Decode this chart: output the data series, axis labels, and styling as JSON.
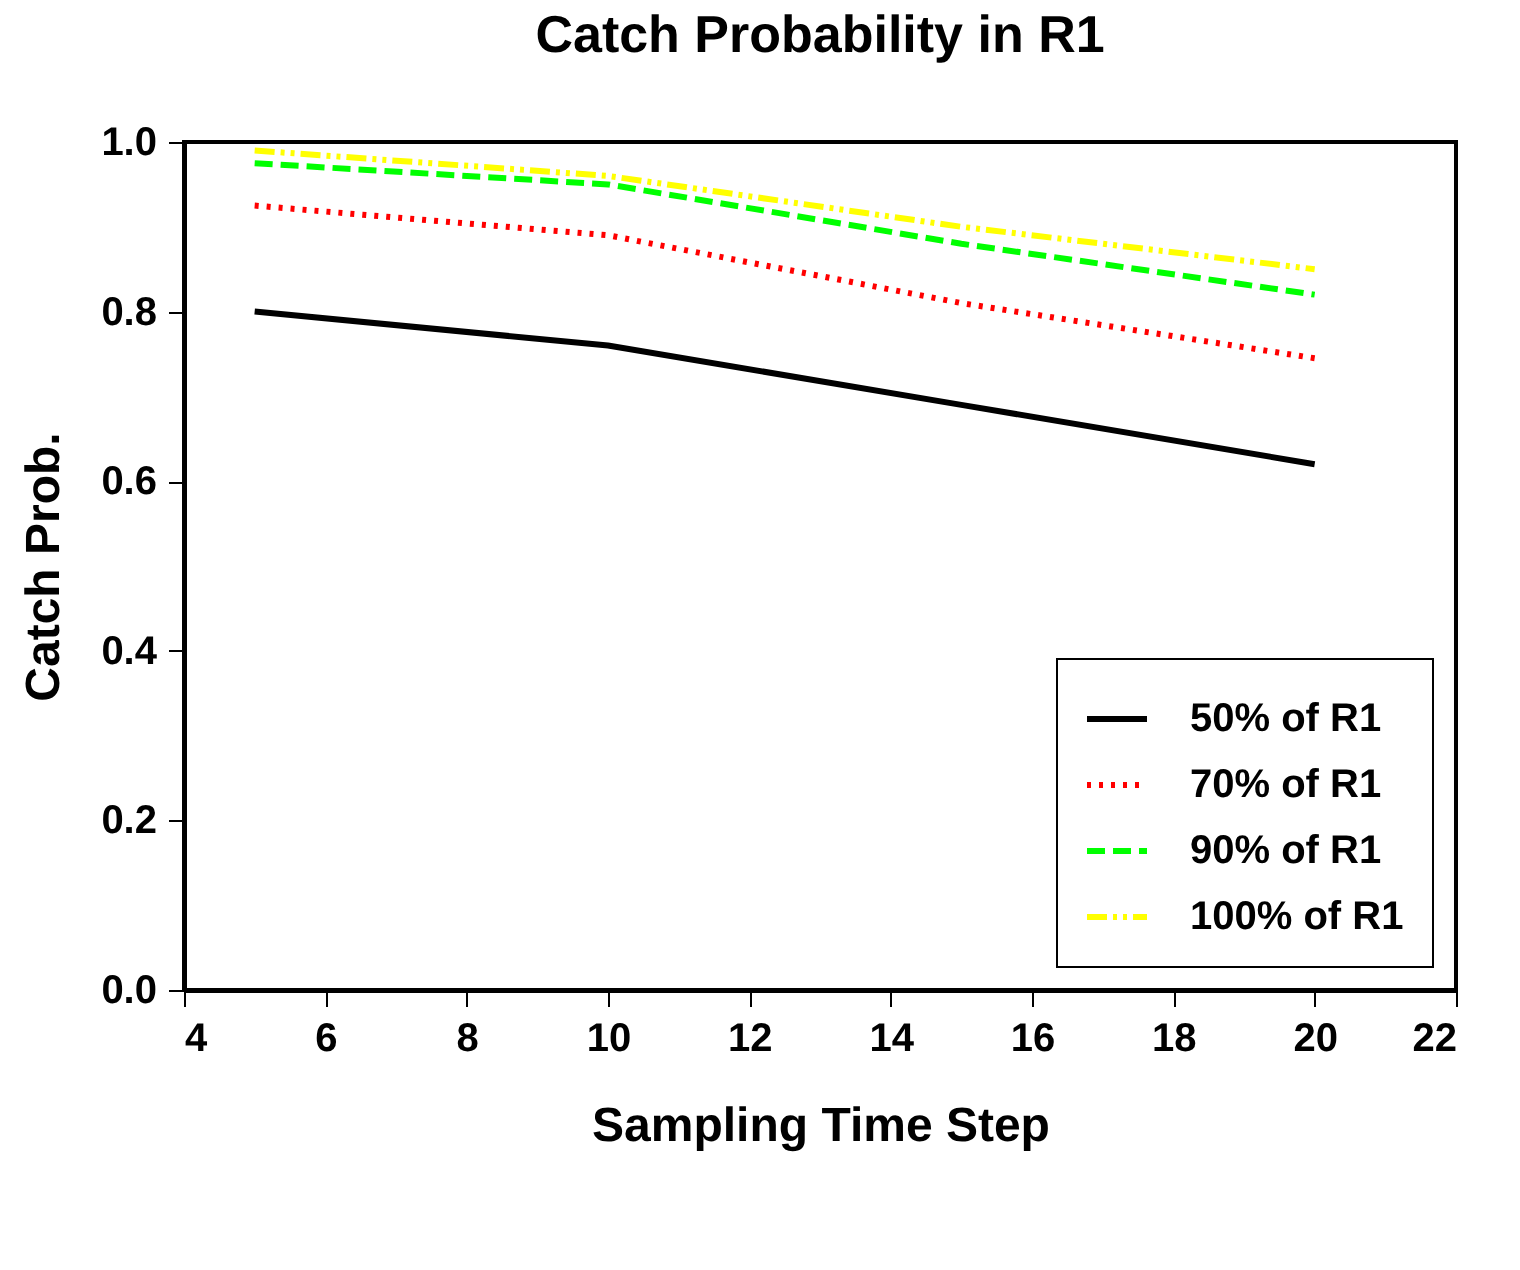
{
  "chart_data": {
    "type": "line",
    "title": "Catch Probability in R1",
    "xlabel": "Sampling Time Step",
    "ylabel": "Catch Prob.",
    "x": [
      5,
      10,
      15,
      20
    ],
    "series": [
      {
        "name": "50% of R1",
        "color": "#000000",
        "line_style": "solid",
        "values": [
          0.8,
          0.76,
          0.69,
          0.62
        ]
      },
      {
        "name": "70% of R1",
        "color": "#ff0000",
        "line_style": "dotted",
        "values": [
          0.925,
          0.89,
          0.81,
          0.745
        ]
      },
      {
        "name": "90% of R1",
        "color": "#00ff00",
        "line_style": "dashed",
        "values": [
          0.975,
          0.95,
          0.88,
          0.82
        ]
      },
      {
        "name": "100% of R1",
        "color": "#ffff00",
        "line_style": "dashdot",
        "values": [
          0.99,
          0.96,
          0.9,
          0.85
        ]
      }
    ],
    "xlim": [
      4,
      22
    ],
    "xticks": [
      4,
      6,
      8,
      10,
      12,
      14,
      16,
      18,
      20,
      22
    ],
    "ylim": [
      0,
      1.0
    ],
    "yticks": [
      {
        "value": 0,
        "label": "0.0"
      },
      0.2,
      0.4,
      0.6,
      0.8,
      {
        "value": 1.0,
        "label": "1.0"
      }
    ],
    "grid": false,
    "legend": "bottom right"
  }
}
